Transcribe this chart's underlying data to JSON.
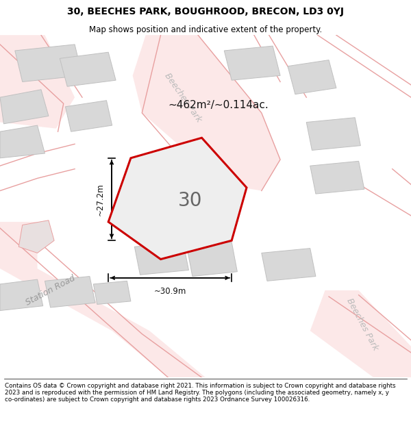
{
  "title_line1": "30, BEECHES PARK, BOUGHROOD, BRECON, LD3 0YJ",
  "title_line2": "Map shows position and indicative extent of the property.",
  "footer_text": "Contains OS data © Crown copyright and database right 2021. This information is subject to Crown copyright and database rights 2023 and is reproduced with the permission of HM Land Registry. The polygons (including the associated geometry, namely x, y co-ordinates) are subject to Crown copyright and database rights 2023 Ordnance Survey 100026316.",
  "area_text": "~462m²/~0.114ac.",
  "plot_number": "30",
  "dim_width": "~30.9m",
  "dim_height": "~27.2m",
  "map_bg": "#f2f2f2",
  "road_edge_color": "#e8a0a0",
  "road_fill_color": "#fce8e8",
  "building_fill": "#d8d8d8",
  "building_edge": "#c0c0c0",
  "highlight_color": "#cc0000",
  "prop_fill": "#eeeeee",
  "label_station_road": "Station Road",
  "label_beeches_park": "Beeches Park",
  "label_beeches_park_top": "Beeches Park",
  "title_fontsize": 10,
  "subtitle_fontsize": 8.5,
  "footer_fontsize": 6.3
}
